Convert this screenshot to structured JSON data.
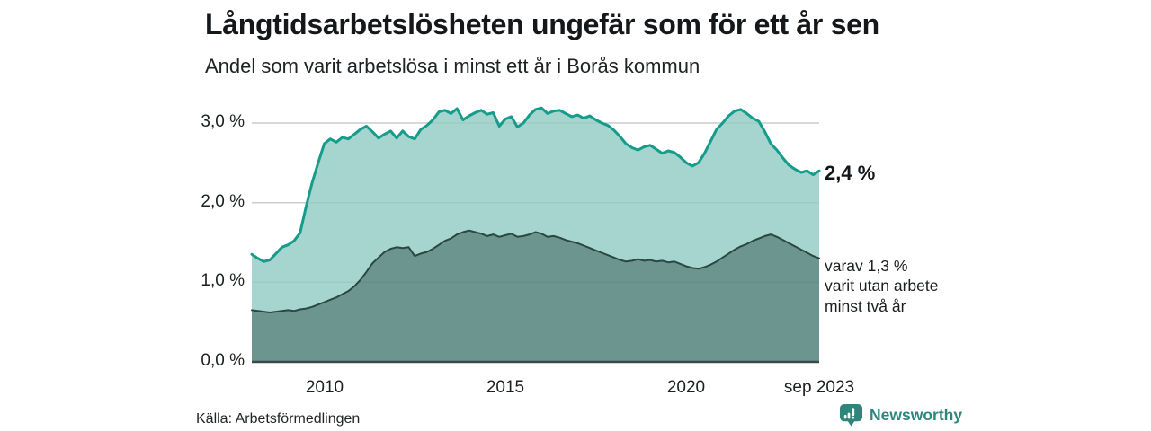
{
  "header": {
    "title": "Långtidsarbetslösheten ungefär som för ett år sen",
    "subtitle": "Andel som varit arbetslösa i minst ett år i Borås kommun"
  },
  "chart": {
    "y_ticks": [
      "3,0 %",
      "2,0 %",
      "1,0 %",
      "0,0 %"
    ],
    "x_ticks": [
      "2010",
      "2015",
      "2020",
      "sep 2023"
    ],
    "annotations": {
      "latest_total": "2,4 %",
      "secondary_line1": "varav 1,3 %",
      "secondary_line2": "varit utan arbete",
      "secondary_line3": "minst två år"
    }
  },
  "footer": {
    "source": "Källa: Arbetsförmedlingen",
    "brand": "Newsworthy"
  },
  "colors": {
    "accent_line": "#159c8a",
    "area_light_fill": "rgba(142,203,194,0.8)",
    "area_dark_fill": "rgba(40,70,68,0.45)",
    "dark_line": "#2a4744",
    "baseline": "#3a4a47",
    "grid": "#cccccc",
    "brand": "#2e857b"
  },
  "chart_data": {
    "type": "area",
    "title": "Långtidsarbetslösheten ungefär som för ett år sen",
    "subtitle": "Andel som varit arbetslösa i minst ett år i Borås kommun",
    "unit": "%",
    "x_start_year": 2008.0,
    "x_step_years": 0.1667,
    "x_end_label": "sep 2023",
    "xtick_years": [
      2010,
      2015,
      2020,
      2023.667
    ],
    "ytick_values": [
      0,
      1,
      2,
      3
    ],
    "ylim": [
      0,
      3.3
    ],
    "grid": true,
    "legend_position": "direct-labels-right",
    "series": [
      {
        "name": "Andel arbetslösa minst ett år",
        "latest_label": "2,4 %",
        "latest_value": 2.4,
        "values": [
          1.35,
          1.3,
          1.26,
          1.28,
          1.36,
          1.44,
          1.47,
          1.52,
          1.62,
          1.95,
          2.25,
          2.5,
          2.74,
          2.8,
          2.76,
          2.82,
          2.8,
          2.86,
          2.92,
          2.96,
          2.89,
          2.81,
          2.86,
          2.9,
          2.81,
          2.9,
          2.83,
          2.8,
          2.92,
          2.97,
          3.04,
          3.14,
          3.16,
          3.12,
          3.18,
          3.04,
          3.09,
          3.13,
          3.16,
          3.11,
          3.13,
          2.96,
          3.05,
          3.08,
          2.95,
          3.0,
          3.1,
          3.17,
          3.19,
          3.12,
          3.15,
          3.16,
          3.12,
          3.08,
          3.1,
          3.06,
          3.09,
          3.04,
          3.0,
          2.97,
          2.91,
          2.83,
          2.74,
          2.69,
          2.66,
          2.7,
          2.72,
          2.67,
          2.62,
          2.65,
          2.63,
          2.57,
          2.5,
          2.46,
          2.5,
          2.62,
          2.77,
          2.92,
          3.0,
          3.09,
          3.15,
          3.17,
          3.12,
          3.06,
          3.02,
          2.89,
          2.74,
          2.66,
          2.56,
          2.47,
          2.42,
          2.38,
          2.4,
          2.35,
          2.4
        ]
      },
      {
        "name": "varav utan arbete minst två år",
        "latest_label": "1,3 %",
        "latest_value": 1.3,
        "values": [
          0.65,
          0.64,
          0.63,
          0.62,
          0.63,
          0.64,
          0.65,
          0.64,
          0.66,
          0.67,
          0.69,
          0.72,
          0.75,
          0.78,
          0.81,
          0.85,
          0.89,
          0.95,
          1.03,
          1.13,
          1.24,
          1.31,
          1.38,
          1.42,
          1.44,
          1.43,
          1.44,
          1.33,
          1.36,
          1.38,
          1.42,
          1.47,
          1.52,
          1.55,
          1.6,
          1.63,
          1.65,
          1.63,
          1.61,
          1.58,
          1.6,
          1.57,
          1.59,
          1.61,
          1.57,
          1.58,
          1.6,
          1.63,
          1.61,
          1.57,
          1.58,
          1.56,
          1.53,
          1.51,
          1.49,
          1.46,
          1.43,
          1.4,
          1.37,
          1.34,
          1.31,
          1.28,
          1.26,
          1.27,
          1.29,
          1.27,
          1.28,
          1.26,
          1.27,
          1.25,
          1.26,
          1.23,
          1.2,
          1.18,
          1.17,
          1.19,
          1.22,
          1.26,
          1.31,
          1.36,
          1.41,
          1.45,
          1.48,
          1.52,
          1.55,
          1.58,
          1.6,
          1.57,
          1.53,
          1.49,
          1.45,
          1.41,
          1.37,
          1.33,
          1.3
        ]
      }
    ]
  }
}
